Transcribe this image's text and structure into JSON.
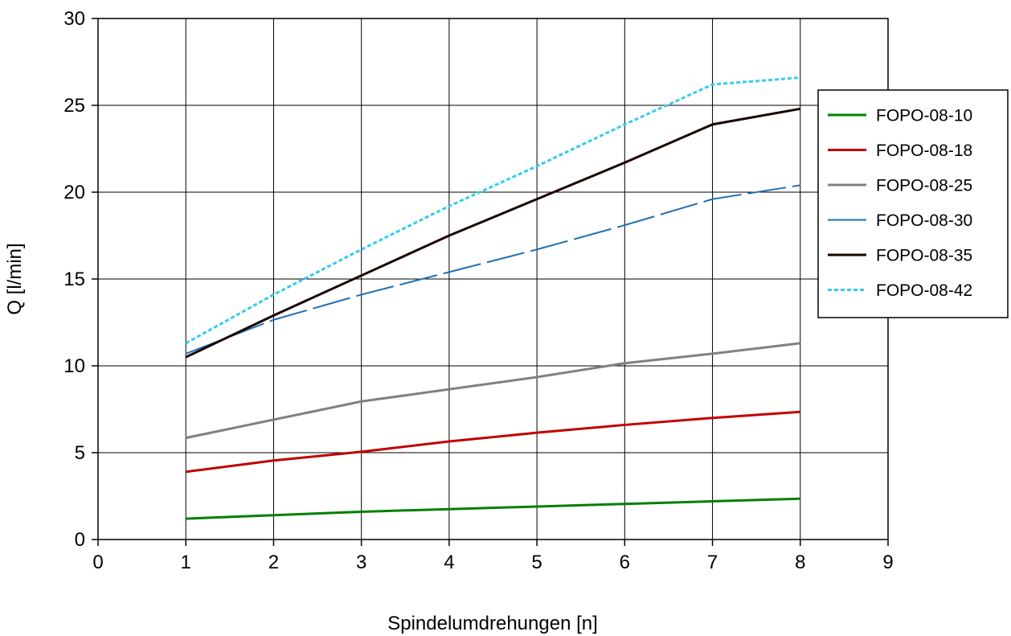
{
  "chart_data": {
    "type": "line",
    "title": "",
    "xlabel": "Spindelumdrehungen [n]",
    "ylabel": "Q [l/min]",
    "xlim": [
      0,
      9
    ],
    "ylim": [
      0,
      30
    ],
    "xticks": [
      0,
      1,
      2,
      3,
      4,
      5,
      6,
      7,
      8,
      9
    ],
    "yticks": [
      0,
      5,
      10,
      15,
      20,
      25,
      30
    ],
    "grid": true,
    "legend_position": "right",
    "x": [
      1,
      2,
      3,
      4,
      5,
      6,
      7,
      8
    ],
    "series": [
      {
        "name": "FOPO-08-10",
        "color": "#008000",
        "dash": "solid",
        "values": [
          1.2,
          1.4,
          1.6,
          1.75,
          1.9,
          2.05,
          2.2,
          2.35
        ]
      },
      {
        "name": "FOPO-08-18",
        "color": "#c00000",
        "dash": "solid",
        "values": [
          3.9,
          4.55,
          5.05,
          5.65,
          6.15,
          6.6,
          7.0,
          7.35
        ]
      },
      {
        "name": "FOPO-08-25",
        "color": "#808080",
        "dash": "solid",
        "values": [
          5.85,
          6.9,
          7.95,
          8.65,
          9.35,
          10.15,
          10.7,
          11.3
        ]
      },
      {
        "name": "FOPO-08-30",
        "color": "#1f6fb2",
        "dash": "longdash",
        "values": [
          10.7,
          12.65,
          14.1,
          15.4,
          16.7,
          18.1,
          19.6,
          20.4
        ]
      },
      {
        "name": "FOPO-08-35",
        "color": "#1a0000",
        "dash": "solid",
        "values": [
          10.5,
          12.9,
          15.2,
          17.5,
          19.6,
          21.7,
          23.9,
          24.8
        ]
      },
      {
        "name": "FOPO-08-42",
        "color": "#33ccee",
        "dash": "dotted",
        "values": [
          11.3,
          14.1,
          16.7,
          19.2,
          21.5,
          23.9,
          26.2,
          26.6
        ]
      }
    ]
  }
}
